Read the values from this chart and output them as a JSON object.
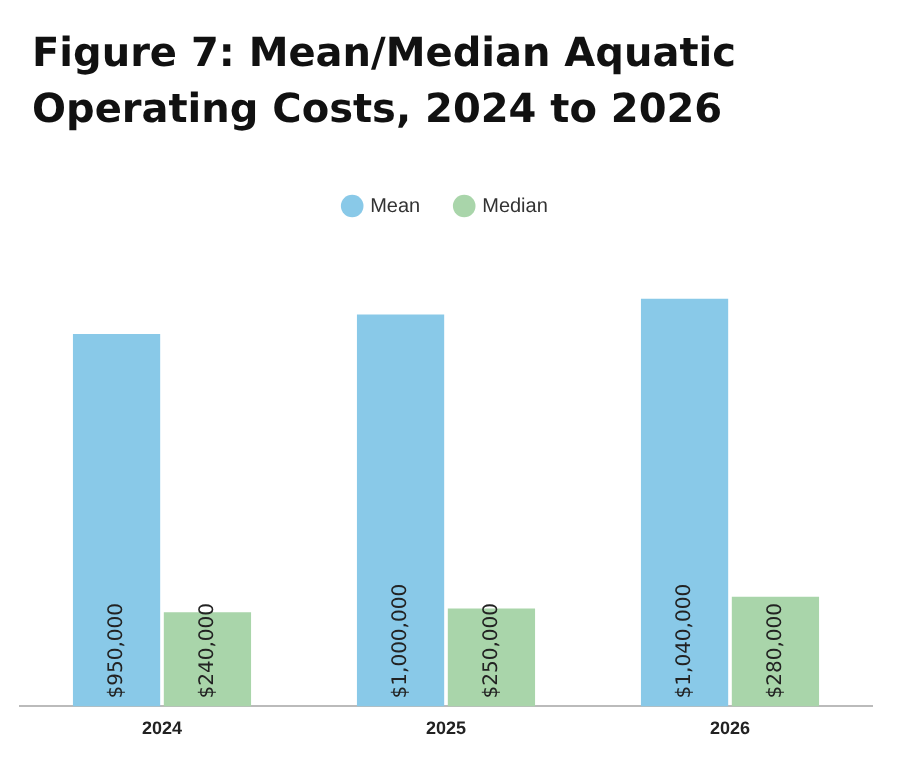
{
  "chart_data": {
    "type": "bar",
    "title": "Figure 7: Mean/Median Aquatic Operating Costs, 2024 to 2026",
    "categories": [
      "2024",
      "2025",
      "2026"
    ],
    "legend": "top",
    "tick_labels": "x",
    "series": [
      {
        "name": "Mean",
        "color": "#89c9e8",
        "values": [
          950000,
          1000000,
          1040000
        ],
        "value_labels": [
          "$950,000",
          "$1,000,000",
          "$1,040,000"
        ]
      },
      {
        "name": "Median",
        "color": "#a9d5aa",
        "values": [
          240000,
          250000,
          280000
        ],
        "value_labels": [
          "$240,000",
          "$250,000",
          "$280,000"
        ]
      }
    ]
  }
}
